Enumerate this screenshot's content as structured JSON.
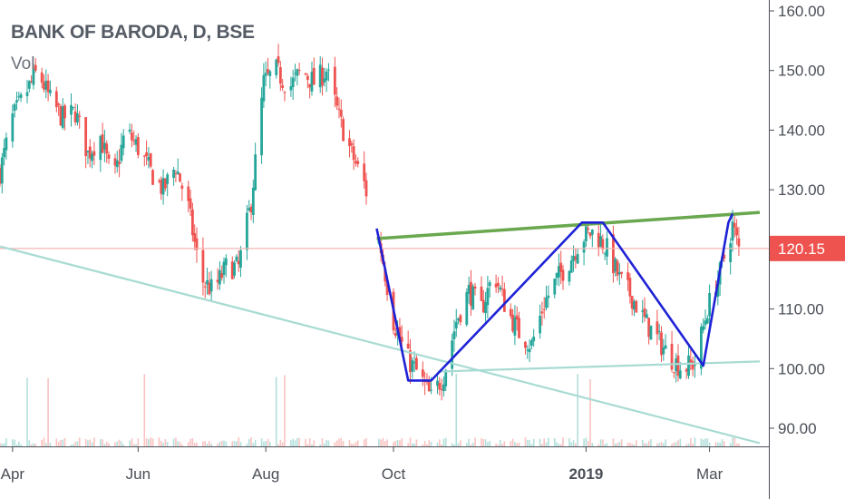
{
  "header": {
    "symbol_title": "BANK OF BARODA, D, BSE",
    "volume_label": "Vol"
  },
  "colors": {
    "up": "#26a69a",
    "down": "#ef5350",
    "trendline_blue": "#1e22d6",
    "resistance_green": "#6aa84f",
    "support_teal": "#a8dbd3",
    "price_line": "#f4b6b4",
    "price_tag_bg": "#ef5350",
    "axis": "#4a4f57"
  },
  "chart_data": {
    "type": "candlestick",
    "title": "BANK OF BARODA, D, BSE",
    "y_ticks": [
      "160.00",
      "150.00",
      "140.00",
      "130.00",
      "120.00",
      "110.00",
      "100.00",
      "90.00"
    ],
    "y_tick_values": [
      160,
      150,
      140,
      130,
      120,
      110,
      100,
      90
    ],
    "ylim": [
      87.5,
      160.5
    ],
    "x_ticks": [
      {
        "label": "Apr",
        "date": "2018-04-02",
        "bold": false
      },
      {
        "label": "Jun",
        "date": "2018-06-01",
        "bold": false
      },
      {
        "label": "Aug",
        "date": "2018-08-01",
        "bold": false
      },
      {
        "label": "Oct",
        "date": "2018-10-01",
        "bold": false
      },
      {
        "label": "2019",
        "date": "2019-01-01",
        "bold": true
      },
      {
        "label": "Mar",
        "date": "2019-03-01",
        "bold": false
      }
    ],
    "last_price": "120.15",
    "last_price_value": 120.15,
    "grid": false,
    "legend": "none",
    "close_path": [
      [
        "2018-03-27",
        133
      ],
      [
        "2018-04-02",
        142
      ],
      [
        "2018-04-08",
        146
      ],
      [
        "2018-04-14",
        150
      ],
      [
        "2018-04-20",
        145
      ],
      [
        "2018-04-26",
        142
      ],
      [
        "2018-05-02",
        143
      ],
      [
        "2018-05-08",
        136
      ],
      [
        "2018-05-14",
        139
      ],
      [
        "2018-05-20",
        131
      ],
      [
        "2018-05-26",
        140
      ],
      [
        "2018-06-01",
        137
      ],
      [
        "2018-06-07",
        133
      ],
      [
        "2018-06-13",
        130
      ],
      [
        "2018-06-19",
        134
      ],
      [
        "2018-06-25",
        127
      ],
      [
        "2018-07-01",
        115
      ],
      [
        "2018-07-07",
        113
      ],
      [
        "2018-07-13",
        117
      ],
      [
        "2018-07-19",
        117
      ],
      [
        "2018-07-25",
        128
      ],
      [
        "2018-07-31",
        148
      ],
      [
        "2018-08-06",
        150
      ],
      [
        "2018-08-12",
        147
      ],
      [
        "2018-08-18",
        150
      ],
      [
        "2018-08-24",
        148
      ],
      [
        "2018-08-30",
        150
      ],
      [
        "2018-09-05",
        142
      ],
      [
        "2018-09-11",
        136
      ],
      [
        "2018-09-17",
        131
      ],
      [
        "2018-09-25",
        120
      ],
      [
        "2018-10-01",
        108
      ],
      [
        "2018-10-07",
        102
      ],
      [
        "2018-10-13",
        99
      ],
      [
        "2018-10-19",
        95
      ],
      [
        "2018-10-25",
        99
      ],
      [
        "2018-10-31",
        108
      ],
      [
        "2018-11-06",
        113
      ],
      [
        "2018-11-12",
        110
      ],
      [
        "2018-11-18",
        116
      ],
      [
        "2018-11-24",
        110
      ],
      [
        "2018-11-30",
        106
      ],
      [
        "2018-12-06",
        104
      ],
      [
        "2018-12-12",
        111
      ],
      [
        "2018-12-18",
        115
      ],
      [
        "2018-12-24",
        118
      ],
      [
        "2018-12-30",
        122
      ],
      [
        "2019-01-05",
        123
      ],
      [
        "2019-01-11",
        120
      ],
      [
        "2019-01-17",
        115
      ],
      [
        "2019-01-23",
        112
      ],
      [
        "2019-01-29",
        108
      ],
      [
        "2019-02-04",
        105
      ],
      [
        "2019-02-10",
        102
      ],
      [
        "2019-02-16",
        100
      ],
      [
        "2019-02-22",
        101
      ],
      [
        "2019-02-28",
        110
      ],
      [
        "2019-03-06",
        116
      ],
      [
        "2019-03-12",
        124
      ],
      [
        "2019-03-15",
        120.15
      ]
    ],
    "drawings": {
      "zigzag_pattern": [
        [
          "2018-09-23",
          123.5
        ],
        [
          "2018-10-08",
          98
        ],
        [
          "2018-10-19",
          98
        ],
        [
          "2018-12-30",
          124.5
        ],
        [
          "2019-01-09",
          124.5
        ],
        [
          "2019-02-26",
          100.5
        ],
        [
          "2019-03-10",
          124.5
        ],
        [
          "2019-03-12",
          126
        ]
      ],
      "resistance_line": [
        [
          "2018-09-23",
          121.8
        ],
        [
          "2019-03-25",
          126.2
        ]
      ],
      "support_line": [
        [
          "2018-10-22",
          99.5
        ],
        [
          "2019-03-25",
          101.2
        ]
      ],
      "long_term_trendline": [
        [
          "2018-03-27",
          120.5
        ],
        [
          "2019-03-25",
          87.5
        ]
      ],
      "price_line_value": 120.15
    }
  }
}
